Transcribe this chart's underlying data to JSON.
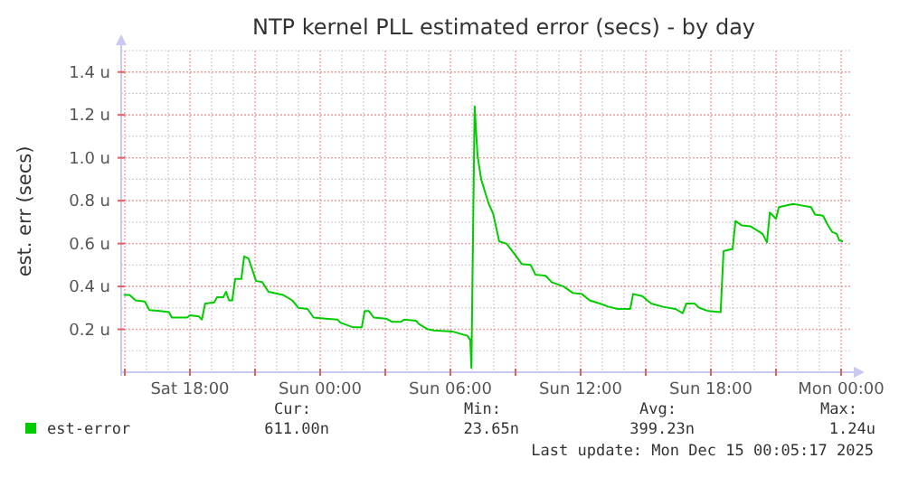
{
  "chart_data": {
    "type": "line",
    "title": "NTP kernel PLL estimated error (secs) - by day",
    "ylabel": "est. err (secs)",
    "xlim": [
      "2025-12-13T14:50",
      "2025-12-15T00:25"
    ],
    "ylim": [
      0,
      1.5
    ],
    "xticks": [
      {
        "value": "2025-12-13T15:00",
        "label": null
      },
      {
        "value": "2025-12-13T18:00",
        "label": "Sat 18:00"
      },
      {
        "value": "2025-12-13T21:00",
        "label": null
      },
      {
        "value": "2025-12-14T00:00",
        "label": "Sun 00:00"
      },
      {
        "value": "2025-12-14T03:00",
        "label": null
      },
      {
        "value": "2025-12-14T06:00",
        "label": "Sun 06:00"
      },
      {
        "value": "2025-12-14T09:00",
        "label": null
      },
      {
        "value": "2025-12-14T12:00",
        "label": "Sun 12:00"
      },
      {
        "value": "2025-12-14T15:00",
        "label": null
      },
      {
        "value": "2025-12-14T18:00",
        "label": "Sun 18:00"
      },
      {
        "value": "2025-12-14T21:00",
        "label": null
      },
      {
        "value": "2025-12-15T00:00",
        "label": "Mon 00:00"
      }
    ],
    "yticks": [
      {
        "value": 0.2,
        "label": "0.2 u"
      },
      {
        "value": 0.4,
        "label": "0.4 u"
      },
      {
        "value": 0.6,
        "label": "0.6 u"
      },
      {
        "value": 0.8,
        "label": "0.8 u"
      },
      {
        "value": 1.0,
        "label": "1.0 u"
      },
      {
        "value": 1.2,
        "label": "1.2 u"
      },
      {
        "value": 1.4,
        "label": "1.4 u"
      }
    ],
    "grid": true,
    "legend": "bottom left",
    "marker": "none",
    "line_style": "solid",
    "annotations": [
      "Cur: 611.00n",
      "Min: 23.65n",
      "Avg: 399.23n",
      "Max: 1.24u",
      "Last update: Mon Dec 15 00:05:17 2025"
    ],
    "series": [
      {
        "name": "est-error",
        "color": "#00cc00",
        "x": [
          "2025-12-13T14:57",
          "2025-12-13T15:13",
          "2025-12-13T15:30",
          "2025-12-13T15:55",
          "2025-12-13T16:08",
          "2025-12-13T16:37",
          "2025-12-13T17:02",
          "2025-12-13T17:10",
          "2025-12-13T17:52",
          "2025-12-13T18:00",
          "2025-12-13T18:25",
          "2025-12-13T18:33",
          "2025-12-13T18:42",
          "2025-12-13T19:07",
          "2025-12-13T19:15",
          "2025-12-13T19:32",
          "2025-12-13T19:40",
          "2025-12-13T19:48",
          "2025-12-13T19:57",
          "2025-12-13T20:05",
          "2025-12-13T20:22",
          "2025-12-13T20:30",
          "2025-12-13T20:42",
          "2025-12-13T21:03",
          "2025-12-13T21:20",
          "2025-12-13T21:37",
          "2025-12-13T22:18",
          "2025-12-13T22:43",
          "2025-12-13T23:00",
          "2025-12-13T23:25",
          "2025-12-13T23:42",
          "2025-12-14T00:15",
          "2025-12-14T00:48",
          "2025-12-14T00:57",
          "2025-12-14T01:30",
          "2025-12-14T01:55",
          "2025-12-14T02:03",
          "2025-12-14T02:15",
          "2025-12-14T02:28",
          "2025-12-14T03:02",
          "2025-12-14T03:18",
          "2025-12-14T03:43",
          "2025-12-14T03:52",
          "2025-12-14T04:25",
          "2025-12-14T04:33",
          "2025-12-14T04:58",
          "2025-12-14T05:15",
          "2025-12-14T06:05",
          "2025-12-14T06:47",
          "2025-12-14T06:55",
          "2025-12-14T06:58",
          "2025-12-14T07:07",
          "2025-12-14T07:15",
          "2025-12-14T07:25",
          "2025-12-14T07:45",
          "2025-12-14T07:58",
          "2025-12-14T08:15",
          "2025-12-14T08:35",
          "2025-12-14T09:00",
          "2025-12-14T09:17",
          "2025-12-14T09:42",
          "2025-12-14T09:55",
          "2025-12-14T10:23",
          "2025-12-14T10:40",
          "2025-12-14T11:13",
          "2025-12-14T11:38",
          "2025-12-14T12:03",
          "2025-12-14T12:25",
          "2025-12-14T12:53",
          "2025-12-14T13:18",
          "2025-12-14T13:43",
          "2025-12-14T14:17",
          "2025-12-14T14:25",
          "2025-12-14T14:50",
          "2025-12-14T15:15",
          "2025-12-14T15:48",
          "2025-12-14T16:22",
          "2025-12-14T16:42",
          "2025-12-14T16:52",
          "2025-12-14T17:15",
          "2025-12-14T17:28",
          "2025-12-14T17:53",
          "2025-12-14T18:27",
          "2025-12-14T18:35",
          "2025-12-14T19:00",
          "2025-12-14T19:08",
          "2025-12-14T19:25",
          "2025-12-14T19:50",
          "2025-12-14T20:23",
          "2025-12-14T20:35",
          "2025-12-14T20:43",
          "2025-12-14T21:00",
          "2025-12-14T21:08",
          "2025-12-14T21:47",
          "2025-12-14T22:03",
          "2025-12-14T22:37",
          "2025-12-14T22:48",
          "2025-12-14T23:10",
          "2025-12-14T23:22",
          "2025-12-14T23:35",
          "2025-12-14T23:48",
          "2025-12-14T23:55",
          "2025-12-15T00:05"
        ],
        "values": [
          0.36,
          0.36,
          0.335,
          0.33,
          0.29,
          0.285,
          0.28,
          0.255,
          0.255,
          0.265,
          0.26,
          0.245,
          0.32,
          0.325,
          0.35,
          0.35,
          0.375,
          0.335,
          0.335,
          0.435,
          0.435,
          0.54,
          0.53,
          0.425,
          0.42,
          0.375,
          0.36,
          0.335,
          0.3,
          0.295,
          0.255,
          0.25,
          0.245,
          0.23,
          0.21,
          0.21,
          0.285,
          0.285,
          0.255,
          0.25,
          0.235,
          0.235,
          0.245,
          0.24,
          0.225,
          0.2,
          0.195,
          0.19,
          0.17,
          0.15,
          0.02,
          1.24,
          1.01,
          0.9,
          0.79,
          0.74,
          0.61,
          0.6,
          0.545,
          0.505,
          0.5,
          0.455,
          0.45,
          0.42,
          0.4,
          0.37,
          0.365,
          0.335,
          0.32,
          0.305,
          0.295,
          0.295,
          0.365,
          0.355,
          0.32,
          0.305,
          0.295,
          0.275,
          0.32,
          0.32,
          0.3,
          0.285,
          0.28,
          0.565,
          0.575,
          0.705,
          0.685,
          0.68,
          0.645,
          0.605,
          0.745,
          0.715,
          0.77,
          0.785,
          0.78,
          0.77,
          0.735,
          0.73,
          0.69,
          0.655,
          0.645,
          0.615,
          0.61
        ]
      }
    ]
  }
}
